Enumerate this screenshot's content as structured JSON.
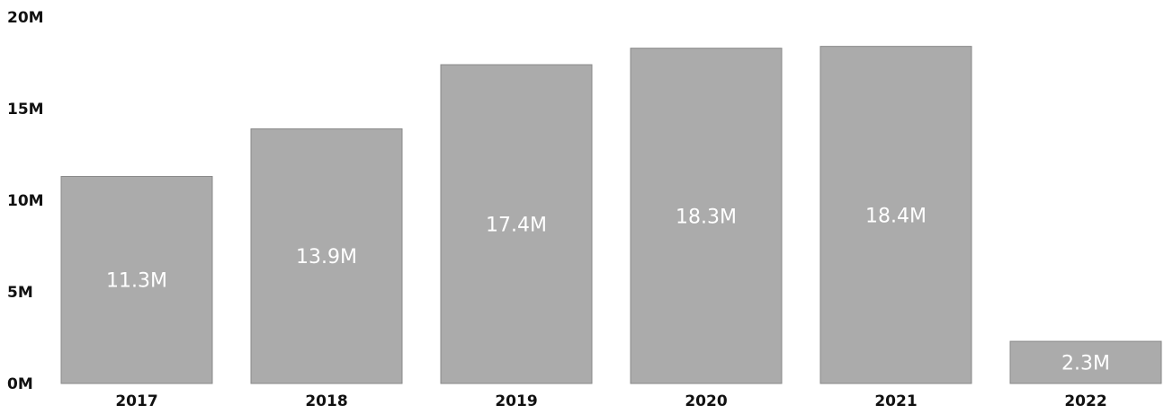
{
  "chart_data": {
    "type": "bar",
    "categories": [
      "2017",
      "2018",
      "2019",
      "2020",
      "2021",
      "2022"
    ],
    "values": [
      11.3,
      13.9,
      17.4,
      18.3,
      18.4,
      2.3
    ],
    "data_labels": [
      "11.3M",
      "13.9M",
      "17.4M",
      "18.3M",
      "18.4M",
      "2.3M"
    ],
    "y_unit": "M",
    "ylim": [
      0,
      20
    ],
    "yticks": [
      0,
      5,
      10,
      15,
      20
    ],
    "ytick_labels": [
      "0M",
      "5M",
      "10M",
      "15M",
      "20M"
    ],
    "title": "",
    "xlabel": "",
    "ylabel": "",
    "grid": false,
    "legend": "none",
    "bar_color": "#ababab",
    "label_color": "#ffffff"
  }
}
